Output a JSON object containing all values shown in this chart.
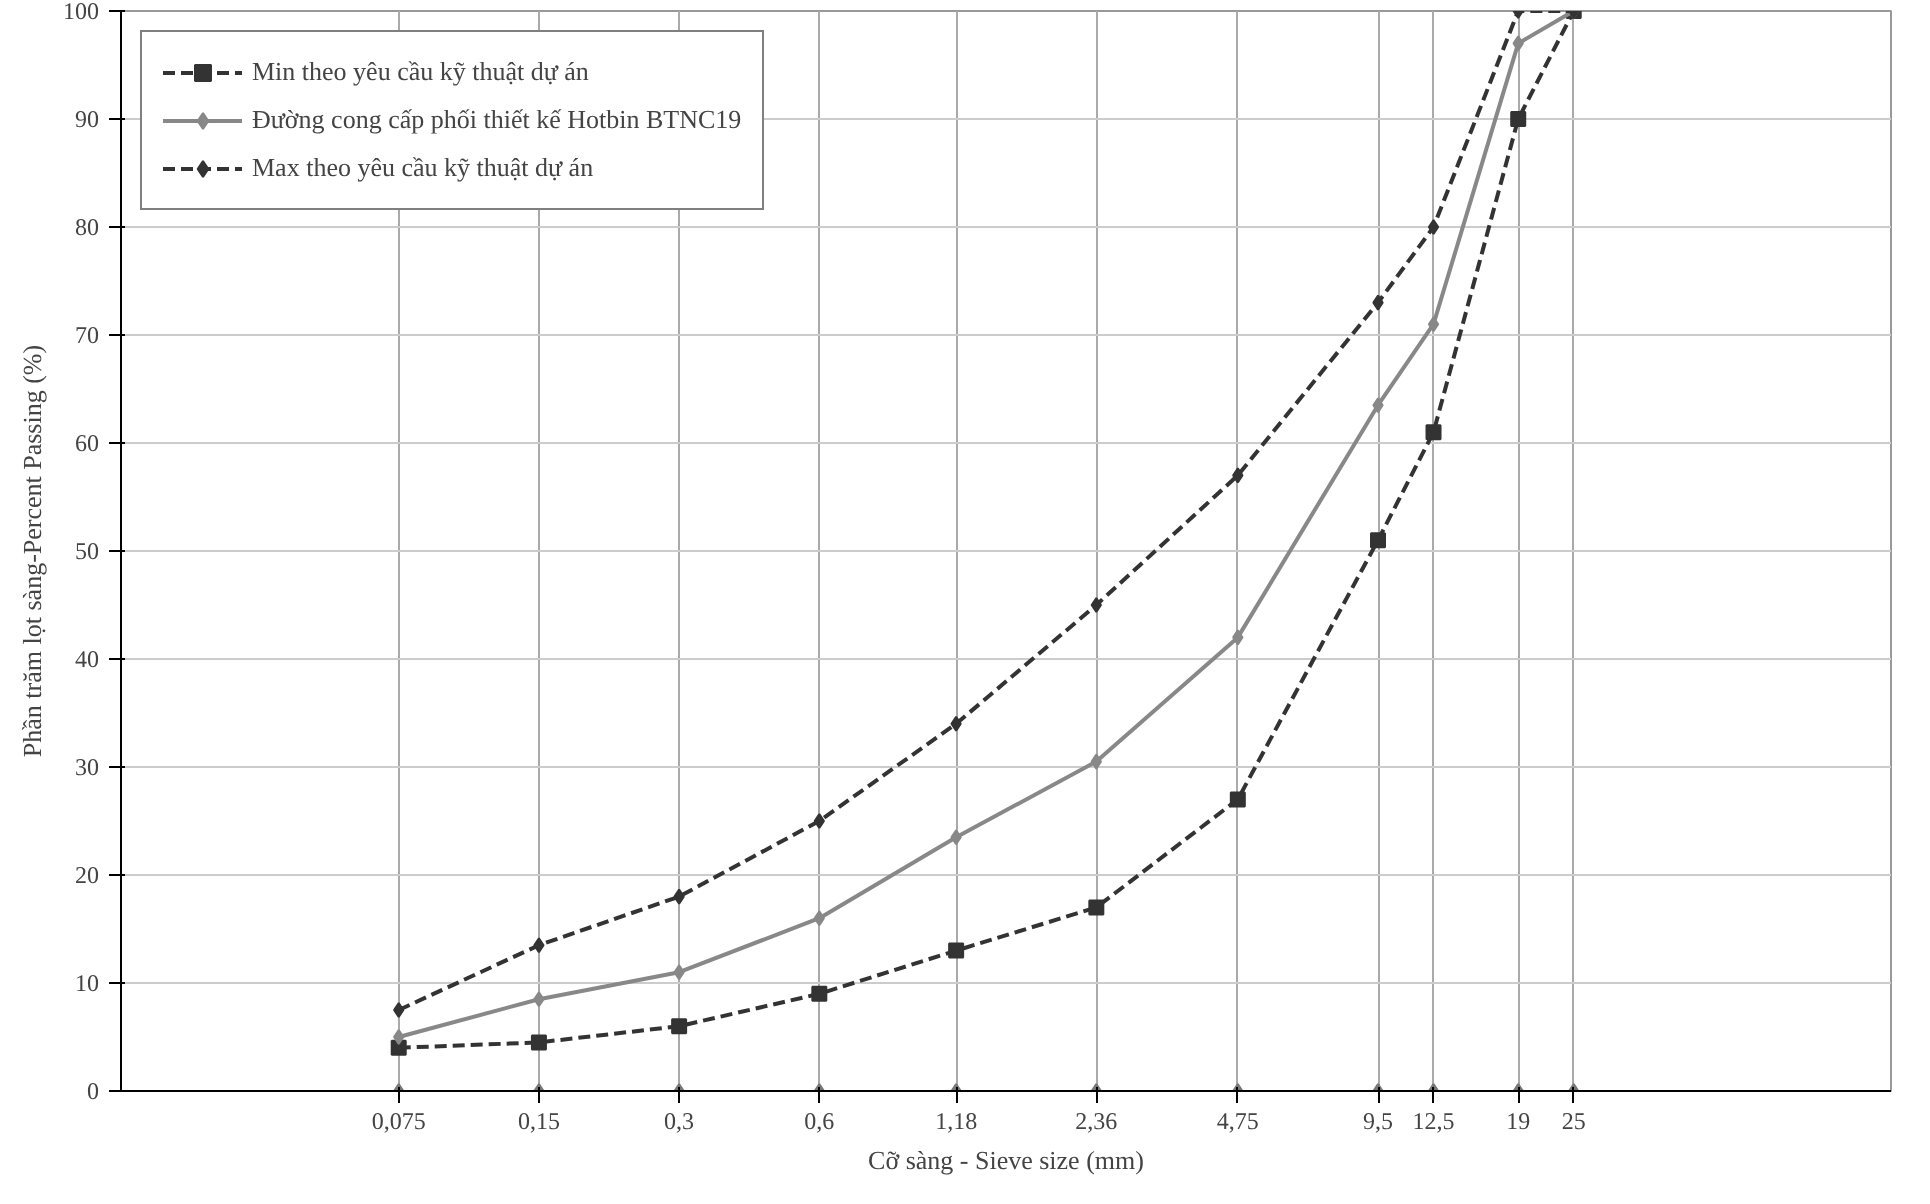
{
  "chart_data": {
    "type": "line",
    "xlabel": "Cỡ sàng - Sieve size (mm)",
    "ylabel": "Phần trăm lọt sàng-Percent Passing (%)",
    "log": "x",
    "grid": true,
    "legend": "top left",
    "x": [
      0.075,
      0.15,
      0.3,
      0.6,
      1.18,
      2.36,
      4.75,
      9.5,
      12.5,
      19,
      25
    ],
    "xlim": [
      0.019,
      120
    ],
    "ylim": [
      0,
      100
    ],
    "xticks": [
      {
        "value": 0.075,
        "label": "0,075"
      },
      {
        "value": 0.15,
        "label": "0,15"
      },
      {
        "value": 0.3,
        "label": "0,3"
      },
      {
        "value": 0.6,
        "label": "0,6"
      },
      {
        "value": 1.18,
        "label": "1,18"
      },
      {
        "value": 2.36,
        "label": "2,36"
      },
      {
        "value": 4.75,
        "label": "4,75"
      },
      {
        "value": 9.5,
        "label": "9,5"
      },
      {
        "value": 12.5,
        "label": "12,5"
      },
      {
        "value": 19,
        "label": "19"
      },
      {
        "value": 25,
        "label": "25"
      }
    ],
    "yticks": [
      0,
      10,
      20,
      30,
      40,
      50,
      60,
      70,
      80,
      90,
      100
    ],
    "series": [
      {
        "name": "Min theo yêu cầu kỹ thuật dự án",
        "color": "#333333",
        "line_style": "dashed",
        "marker": "square",
        "values": [
          4,
          4.5,
          6,
          9,
          13,
          17,
          27,
          51,
          61,
          90,
          100
        ]
      },
      {
        "name": "Đường cong cấp phối thiết kế Hotbin BTNC19",
        "color": "#888888",
        "line_style": "solid",
        "marker": "diamond",
        "values": [
          5,
          8.5,
          11,
          16,
          23.5,
          30.5,
          42,
          63.5,
          71,
          97,
          100
        ]
      },
      {
        "name": "Max theo yêu cầu kỹ thuật dự án",
        "color": "#333333",
        "line_style": "dashed",
        "marker": "diamond",
        "values": [
          7.5,
          13.5,
          18,
          25,
          34,
          45,
          57,
          73,
          80,
          100,
          100
        ]
      },
      {
        "type": "scatter",
        "color": "#777777",
        "marker": "diamond",
        "values": [
          0,
          0,
          0,
          0,
          0,
          0,
          0,
          0,
          0,
          0,
          0
        ]
      }
    ]
  }
}
